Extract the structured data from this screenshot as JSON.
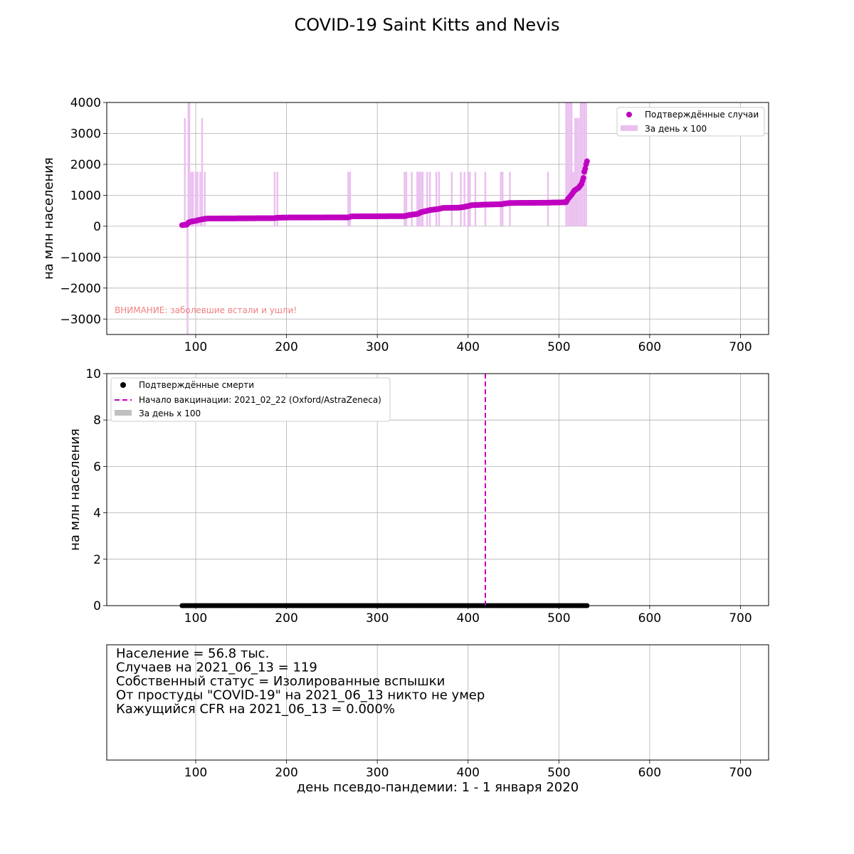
{
  "page": {
    "title": "COVID-19 Saint Kitts and Nevis",
    "xlabel": "день псевдо-пандемии: 1 - 1 января 2020"
  },
  "chart_data": [
    {
      "type": "line",
      "panel": "cases",
      "ylabel": "на млн населения",
      "xlim": [
        2,
        731
      ],
      "ylim": [
        -3500,
        4000
      ],
      "xticks": [
        100,
        200,
        300,
        400,
        500,
        600,
        700
      ],
      "yticks": [
        -3000,
        -2000,
        -1000,
        0,
        1000,
        2000,
        3000,
        4000
      ],
      "ytick_labels": [
        "−3000",
        "−2000",
        "−1000",
        "0",
        "1000",
        "2000",
        "3000",
        "4000"
      ],
      "grid": true,
      "legend_position": "top-right",
      "annotation": "ВНИМАНИЕ: заболевшие встали и ушли!",
      "series": [
        {
          "name": "Подтверждённые случаи",
          "kind": "scatter",
          "color": "#c000c0",
          "points": [
            [
              85,
              35
            ],
            [
              90,
              50
            ],
            [
              92,
              120
            ],
            [
              95,
              150
            ],
            [
              100,
              175
            ],
            [
              105,
              210
            ],
            [
              110,
              240
            ],
            [
              115,
              250
            ],
            [
              150,
              255
            ],
            [
              187,
              260
            ],
            [
              190,
              275
            ],
            [
              200,
              280
            ],
            [
              268,
              285
            ],
            [
              272,
              320
            ],
            [
              330,
              325
            ],
            [
              335,
              360
            ],
            [
              345,
              400
            ],
            [
              348,
              450
            ],
            [
              352,
              480
            ],
            [
              358,
              520
            ],
            [
              368,
              560
            ],
            [
              372,
              590
            ],
            [
              390,
              600
            ],
            [
              395,
              620
            ],
            [
              400,
              650
            ],
            [
              404,
              680
            ],
            [
              420,
              700
            ],
            [
              437,
              710
            ],
            [
              440,
              730
            ],
            [
              446,
              750
            ],
            [
              488,
              760
            ],
            [
              508,
              775
            ],
            [
              510,
              880
            ],
            [
              514,
              1020
            ],
            [
              517,
              1150
            ],
            [
              522,
              1250
            ],
            [
              525,
              1370
            ],
            [
              527,
              1560
            ],
            [
              528,
              1760
            ],
            [
              529,
              1860
            ],
            [
              530,
              2000
            ],
            [
              531,
              2100
            ]
          ]
        },
        {
          "name": "За день x 100",
          "kind": "bars",
          "color": "#eabfef",
          "bars": [
            [
              88,
              3500
            ],
            [
              91,
              -3500
            ],
            [
              92,
              4000
            ],
            [
              93,
              4000
            ],
            [
              95,
              1760
            ],
            [
              97,
              1760
            ],
            [
              100,
              1760
            ],
            [
              102,
              1760
            ],
            [
              105,
              1760
            ],
            [
              107,
              3500
            ],
            [
              110,
              1760
            ],
            [
              187,
              1760
            ],
            [
              190,
              1760
            ],
            [
              268,
              1760
            ],
            [
              270,
              1760
            ],
            [
              330,
              1760
            ],
            [
              332,
              1760
            ],
            [
              338,
              1760
            ],
            [
              344,
              1760
            ],
            [
              346,
              1760
            ],
            [
              348,
              1760
            ],
            [
              350,
              1760
            ],
            [
              355,
              1760
            ],
            [
              358,
              1760
            ],
            [
              365,
              1760
            ],
            [
              368,
              1760
            ],
            [
              382,
              1760
            ],
            [
              392,
              1760
            ],
            [
              396,
              1760
            ],
            [
              400,
              1760
            ],
            [
              402,
              1760
            ],
            [
              408,
              1760
            ],
            [
              419,
              1760
            ],
            [
              436,
              1760
            ],
            [
              438,
              1760
            ],
            [
              446,
              1760
            ],
            [
              488,
              1760
            ],
            [
              508,
              4000
            ],
            [
              510,
              4000
            ],
            [
              512,
              4000
            ],
            [
              514,
              4000
            ],
            [
              516,
              1760
            ],
            [
              518,
              3500
            ],
            [
              520,
              3500
            ],
            [
              522,
              3500
            ],
            [
              524,
              4000
            ],
            [
              526,
              4000
            ],
            [
              528,
              4000
            ],
            [
              530,
              4000
            ]
          ]
        }
      ]
    },
    {
      "type": "line",
      "panel": "deaths",
      "ylabel": "на млн населения",
      "xlim": [
        2,
        731
      ],
      "ylim": [
        0,
        10
      ],
      "xticks": [
        100,
        200,
        300,
        400,
        500,
        600,
        700
      ],
      "yticks": [
        0,
        2,
        4,
        6,
        8,
        10
      ],
      "grid": true,
      "legend_position": "top-left",
      "series": [
        {
          "name": "Подтверждённые смерти",
          "kind": "scatter",
          "color": "#000000",
          "x_range": [
            85,
            531
          ],
          "y": 0
        },
        {
          "name": "Начало вакцинации: 2021_02_22 (Oxford/AstraZeneca)",
          "kind": "vline",
          "color": "#c000c0",
          "x": 419
        },
        {
          "name": "За день x 100",
          "kind": "bars",
          "color": "#c0c0c0",
          "bars": []
        }
      ]
    }
  ],
  "info_panel": {
    "lines": [
      "Население = 56.8 тыс.",
      "Случаев на 2021_06_13 = 119",
      "Собственный статус = Изолированные вспышки",
      "От простуды \"COVID-19\" на 2021_06_13 никто не умер",
      "Кажущийся CFR на 2021_06_13 = 0.000%"
    ],
    "xticks": [
      100,
      200,
      300,
      400,
      500,
      600,
      700
    ]
  }
}
